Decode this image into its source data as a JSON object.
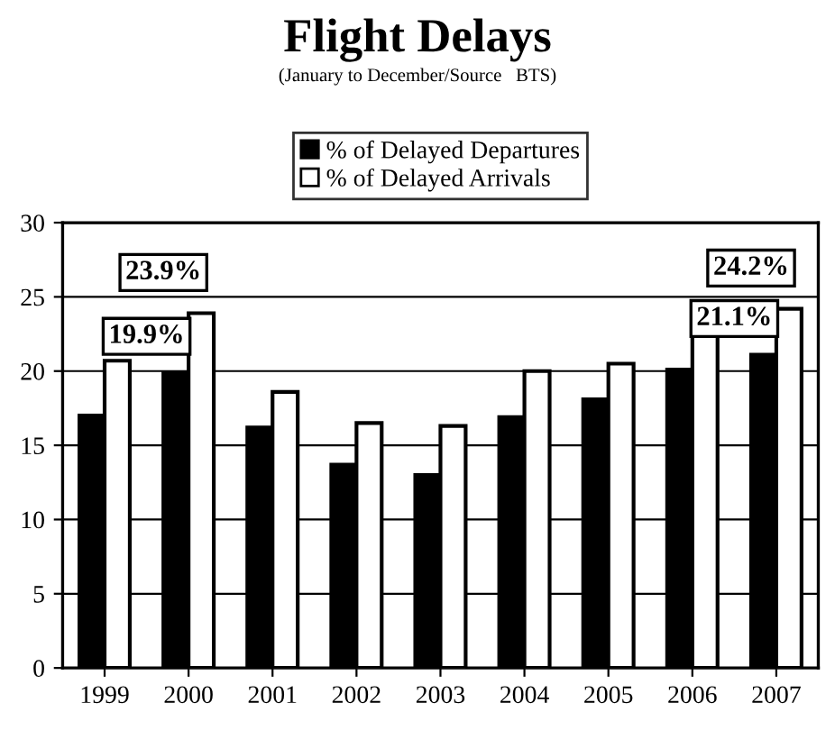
{
  "chart_data": {
    "type": "bar",
    "title": "Flight Delays",
    "subtitle": "(January to December/Source   BTS)",
    "categories": [
      "1999",
      "2000",
      "2001",
      "2002",
      "2003",
      "2004",
      "2005",
      "2006",
      "2007"
    ],
    "series": [
      {
        "name": "% of Delayed Departures",
        "color": "#000000",
        "values": [
          17.0,
          19.9,
          16.2,
          13.7,
          13.0,
          16.9,
          18.1,
          20.1,
          21.1
        ]
      },
      {
        "name": "% of Delayed Arrivals",
        "color": "#ffffff",
        "values": [
          20.7,
          23.9,
          18.6,
          16.5,
          16.3,
          20.0,
          20.5,
          22.5,
          24.2
        ]
      }
    ],
    "annotations": [
      {
        "text": "19.9%",
        "x": "2000",
        "y": 19.9
      },
      {
        "text": "23.9%",
        "x": "2000",
        "y": 23.9
      },
      {
        "text": "21.1%",
        "x": "2007",
        "y": 21.1
      },
      {
        "text": "24.2%",
        "x": "2007",
        "y": 24.2
      }
    ],
    "ylim": [
      0,
      30
    ],
    "yticks": [
      0,
      5,
      10,
      15,
      20,
      25,
      30
    ],
    "grid": "y",
    "legend": "top"
  }
}
